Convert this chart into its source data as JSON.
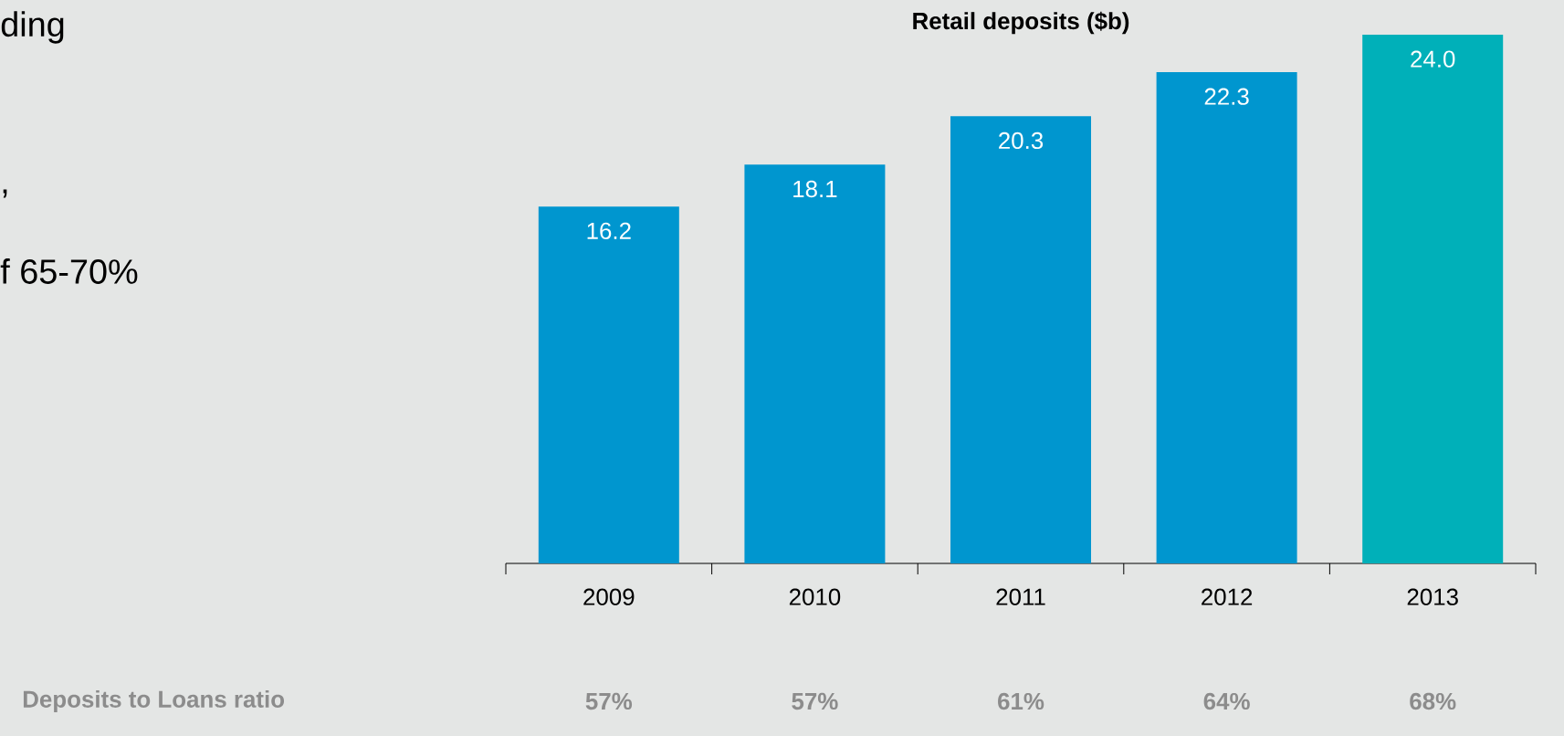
{
  "chart_data": {
    "type": "bar",
    "title": "Retail deposits ($b)",
    "categories": [
      "2009",
      "2010",
      "2011",
      "2012",
      "2013"
    ],
    "values": [
      16.2,
      18.1,
      20.3,
      22.3,
      24.0
    ],
    "colors": [
      "#0096cf",
      "#0096cf",
      "#0096cf",
      "#0096cf",
      "#00b0b9"
    ],
    "value_labels": [
      "16.2",
      "18.1",
      "20.3",
      "22.3",
      "24.0"
    ],
    "annotations": [
      "ding",
      ",",
      "f 65-70%",
      "Deposits to Loans ratio",
      "57%",
      "57%",
      "61%",
      "64%",
      "68%"
    ]
  }
}
